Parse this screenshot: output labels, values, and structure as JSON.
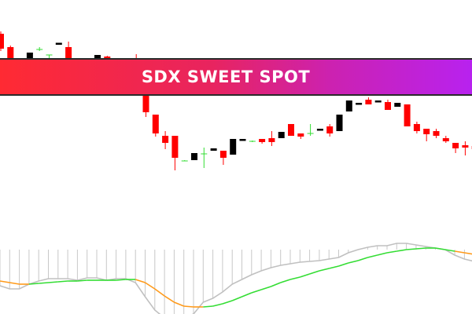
{
  "banner": {
    "title": "SDX SWEET SPOT"
  },
  "colors": {
    "bear": "#ff0000",
    "bull": "#000000",
    "doji": "#33dd33",
    "histogram": "#c8c8c8",
    "macd_line": "#c0c0c0",
    "signal_up": "#33dd33",
    "signal_down": "#ff9a1a",
    "banner_start": "#ff2a33",
    "banner_end": "#b822ef"
  },
  "chart_data": [
    {
      "type": "candlestick",
      "candles": [
        {
          "i": 0,
          "o": 357,
          "h": 360,
          "l": 335,
          "c": 338
        },
        {
          "i": 1,
          "o": 340,
          "h": 342,
          "l": 325,
          "c": 325
        },
        {
          "i": 3,
          "o": 325,
          "h": 333,
          "l": 325,
          "c": 333
        },
        {
          "i": 4,
          "o": 337,
          "h": 340,
          "l": 335,
          "c": 337,
          "doji": true
        },
        {
          "i": 5,
          "o": 330,
          "h": 330,
          "l": 325,
          "c": 330,
          "doji": true
        },
        {
          "i": 6,
          "o": 345,
          "h": 345,
          "l": 345,
          "c": 345.5
        },
        {
          "i": 7,
          "o": 340,
          "h": 347,
          "l": 325,
          "c": 325
        },
        {
          "i": 10,
          "o": 325,
          "h": 330,
          "l": 325,
          "c": 330
        },
        {
          "i": 11,
          "o": 328,
          "h": 329,
          "l": 325,
          "c": 325
        },
        {
          "i": 14,
          "o": 326,
          "h": 331,
          "l": 325,
          "c": 325
        },
        {
          "i": 15,
          "o": 280,
          "h": 280,
          "l": 251,
          "c": 257
        },
        {
          "i": 16,
          "o": 254,
          "h": 254,
          "l": 226,
          "c": 230
        },
        {
          "i": 17,
          "o": 227,
          "h": 233,
          "l": 210,
          "c": 218
        },
        {
          "i": 18,
          "o": 227,
          "h": 227,
          "l": 183,
          "c": 199
        },
        {
          "i": 19,
          "o": 195,
          "h": 196,
          "l": 195,
          "c": 195,
          "doji": true
        },
        {
          "i": 20,
          "o": 196,
          "h": 205,
          "l": 196,
          "c": 205
        },
        {
          "i": 21,
          "o": 204,
          "h": 212,
          "l": 186,
          "c": 204,
          "doji": true
        },
        {
          "i": 22,
          "o": 208,
          "h": 211,
          "l": 208,
          "c": 211
        },
        {
          "i": 23,
          "o": 208,
          "h": 208,
          "l": 190,
          "c": 199
        },
        {
          "i": 24,
          "o": 203,
          "h": 223,
          "l": 203,
          "c": 223
        },
        {
          "i": 25,
          "o": 222,
          "h": 222,
          "l": 222,
          "c": 223
        },
        {
          "i": 26,
          "o": 220,
          "h": 221,
          "l": 219,
          "c": 220,
          "doji": true
        },
        {
          "i": 27,
          "o": 223,
          "h": 223,
          "l": 217,
          "c": 219
        },
        {
          "i": 28,
          "o": 224,
          "h": 233,
          "l": 214,
          "c": 219
        },
        {
          "i": 29,
          "o": 224,
          "h": 232,
          "l": 224,
          "c": 232
        },
        {
          "i": 30,
          "o": 242,
          "h": 242,
          "l": 227,
          "c": 227
        },
        {
          "i": 31,
          "o": 230,
          "h": 230,
          "l": 223,
          "c": 226
        },
        {
          "i": 32,
          "o": 230,
          "h": 242,
          "l": 227,
          "c": 230,
          "doji": true
        },
        {
          "i": 33,
          "o": 235,
          "h": 235,
          "l": 235,
          "c": 236
        },
        {
          "i": 34,
          "o": 239,
          "h": 242,
          "l": 226,
          "c": 230
        },
        {
          "i": 35,
          "o": 233,
          "h": 254,
          "l": 233,
          "c": 254
        },
        {
          "i": 36,
          "o": 258,
          "h": 272,
          "l": 258,
          "c": 272
        },
        {
          "i": 37,
          "o": 268,
          "h": 268,
          "l": 268,
          "c": 269
        },
        {
          "i": 38,
          "o": 273,
          "h": 276,
          "l": 267,
          "c": 267
        },
        {
          "i": 39,
          "o": 271,
          "h": 271,
          "l": 271,
          "c": 272
        },
        {
          "i": 40,
          "o": 270,
          "h": 273,
          "l": 260,
          "c": 260
        },
        {
          "i": 41,
          "o": 264,
          "h": 269,
          "l": 264,
          "c": 269
        },
        {
          "i": 42,
          "o": 267,
          "h": 267,
          "l": 239,
          "c": 239
        },
        {
          "i": 43,
          "o": 242,
          "h": 245,
          "l": 230,
          "c": 233
        },
        {
          "i": 44,
          "o": 236,
          "h": 236,
          "l": 220,
          "c": 229
        },
        {
          "i": 45,
          "o": 233,
          "h": 236,
          "l": 224,
          "c": 227
        },
        {
          "i": 46,
          "o": 224,
          "h": 227,
          "l": 218,
          "c": 220
        },
        {
          "i": 47,
          "o": 218,
          "h": 218,
          "l": 205,
          "c": 211
        },
        {
          "i": 48,
          "o": 215,
          "h": 220,
          "l": 202,
          "c": 212
        },
        {
          "i": 49,
          "o": 214,
          "h": 215,
          "l": 209,
          "c": 210
        }
      ]
    },
    {
      "type": "line",
      "zero_level": 82,
      "macd": [
        36,
        32,
        32,
        38,
        42,
        45,
        45,
        45,
        43,
        46,
        46,
        43,
        45,
        45,
        40,
        22,
        5,
        -5,
        -8,
        -5,
        0,
        15,
        20,
        28,
        38,
        44,
        50,
        55,
        59,
        62,
        64,
        66,
        67,
        68,
        70,
        72,
        78,
        82,
        85,
        87,
        87,
        90,
        90,
        88,
        86,
        84,
        82,
        75,
        70,
        67
      ],
      "signal": [
        42,
        40,
        38,
        38,
        39,
        40,
        41,
        42,
        42,
        43,
        43,
        43,
        43,
        44,
        44,
        40,
        32,
        23,
        15,
        10,
        9,
        9,
        10,
        13,
        17,
        22,
        27,
        31,
        35,
        40,
        44,
        47,
        51,
        55,
        58,
        61,
        65,
        68,
        72,
        75,
        78,
        80,
        82,
        83,
        84,
        84,
        82,
        80,
        78,
        76
      ]
    }
  ]
}
